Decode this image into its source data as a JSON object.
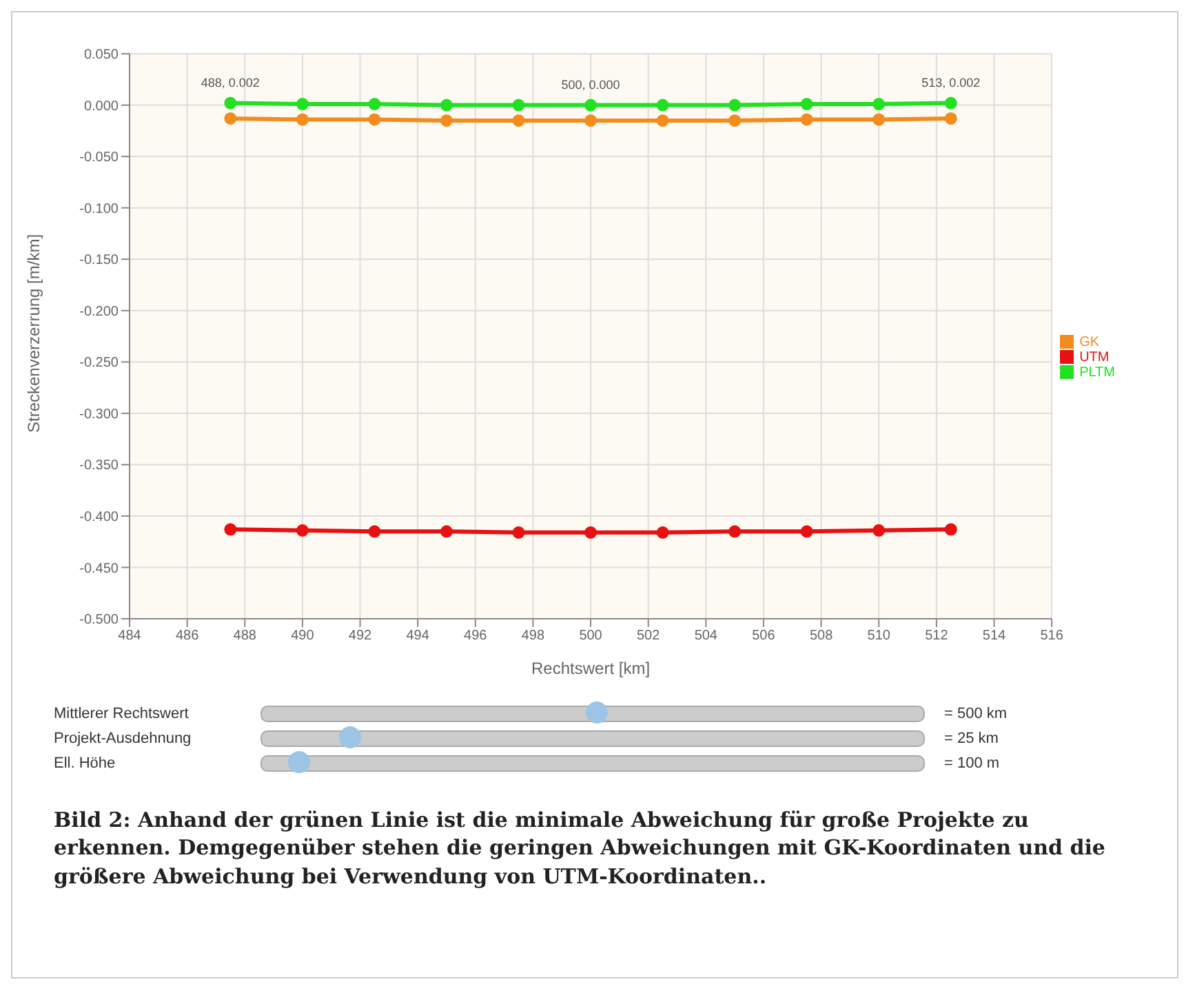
{
  "chart_data": {
    "type": "line",
    "xlabel": "Rechtswert [km]",
    "ylabel": "Streckenverzerrung [m/km]",
    "x": [
      487.5,
      490,
      492.5,
      495,
      497.5,
      500,
      502.5,
      505,
      507.5,
      510,
      512.5
    ],
    "series": [
      {
        "name": "GK",
        "color": "#f28c1e",
        "values": [
          -0.013,
          -0.014,
          -0.014,
          -0.015,
          -0.015,
          -0.015,
          -0.015,
          -0.015,
          -0.014,
          -0.014,
          -0.013
        ]
      },
      {
        "name": "UTM",
        "color": "#e81010",
        "values": [
          -0.413,
          -0.414,
          -0.415,
          -0.415,
          -0.416,
          -0.416,
          -0.416,
          -0.415,
          -0.415,
          -0.414,
          -0.413
        ]
      },
      {
        "name": "PLTM",
        "color": "#22e022",
        "values": [
          0.002,
          0.001,
          0.001,
          0.0,
          0.0,
          0.0,
          0.0,
          0.0,
          0.001,
          0.001,
          0.002
        ]
      }
    ],
    "xlim": [
      484,
      516
    ],
    "xticks": [
      484,
      486,
      488,
      490,
      492,
      494,
      496,
      498,
      500,
      502,
      504,
      506,
      508,
      510,
      512,
      514,
      516
    ],
    "ylim": [
      -0.5,
      0.05
    ],
    "yticks": [
      {
        "value": -0.5,
        "label": "-0.500"
      },
      {
        "value": -0.45,
        "label": "-0.450"
      },
      {
        "value": -0.4,
        "label": "-0.400"
      },
      {
        "value": -0.35,
        "label": "-0.350"
      },
      {
        "value": -0.3,
        "label": "-0.300"
      },
      {
        "value": -0.25,
        "label": "-0.250"
      },
      {
        "value": -0.2,
        "label": "-0.200"
      },
      {
        "value": -0.15,
        "label": "-0.150"
      },
      {
        "value": -0.1,
        "label": "-0.100"
      },
      {
        "value": -0.05,
        "label": "-0.050"
      },
      {
        "value": 0,
        "label": "0.000"
      },
      {
        "value": 0.05,
        "label": "0.050"
      }
    ],
    "grid": true,
    "legend": "right",
    "marker": "circle",
    "line_style": "solid",
    "annotations": [
      {
        "text": "488, 0.002",
        "x": 487.5,
        "y": 0.002
      },
      {
        "text": "500, 0.000",
        "x": 500,
        "y": 0.0
      },
      {
        "text": "513, 0.002",
        "x": 512.5,
        "y": 0.002
      },
      "Mittlerer Rechtswert",
      "= 500 km",
      "Projekt-Ausdehnung",
      "= 25 km",
      "Ell. Höhe",
      "= 100 m",
      "Bild 2: Anhand der grünen Linie ist die minimale Abweichung für große Projekte zu erkennen. Demgegenüber stehen die geringen Abweichungen mit GK-Koordinaten und die größere Abweichung bei Verwendung von UTM-Koordinaten.."
    ]
  }
}
